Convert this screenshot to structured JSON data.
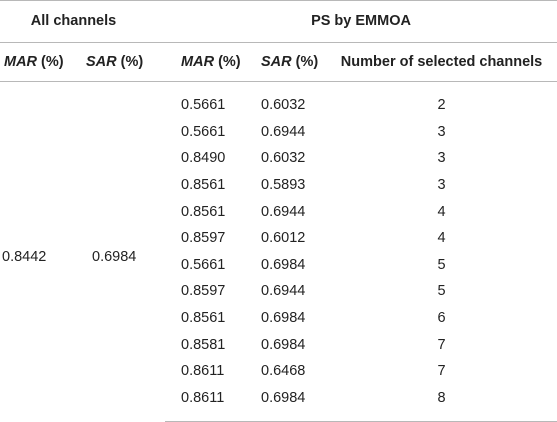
{
  "headers": {
    "group_all": "All channels",
    "group_ps": "PS by EMMOA",
    "mar_italic": "MAR",
    "sar_italic": "SAR",
    "pct": " (%)",
    "num_selected": "Number of selected channels"
  },
  "all_channels": {
    "mar": "0.8442",
    "sar": "0.6984"
  },
  "rows": [
    {
      "mar": "0.5661",
      "sar": "0.6032",
      "n": "2"
    },
    {
      "mar": "0.5661",
      "sar": "0.6944",
      "n": "3"
    },
    {
      "mar": "0.8490",
      "sar": "0.6032",
      "n": "3"
    },
    {
      "mar": "0.8561",
      "sar": "0.5893",
      "n": "3"
    },
    {
      "mar": "0.8561",
      "sar": "0.6944",
      "n": "4"
    },
    {
      "mar": "0.8597",
      "sar": "0.6012",
      "n": "4"
    },
    {
      "mar": "0.5661",
      "sar": "0.6984",
      "n": "5"
    },
    {
      "mar": "0.8597",
      "sar": "0.6944",
      "n": "5"
    },
    {
      "mar": "0.8561",
      "sar": "0.6984",
      "n": "6"
    },
    {
      "mar": "0.8581",
      "sar": "0.6984",
      "n": "7"
    },
    {
      "mar": "0.8611",
      "sar": "0.6468",
      "n": "7"
    },
    {
      "mar": "0.8611",
      "sar": "0.6984",
      "n": "8"
    }
  ]
}
